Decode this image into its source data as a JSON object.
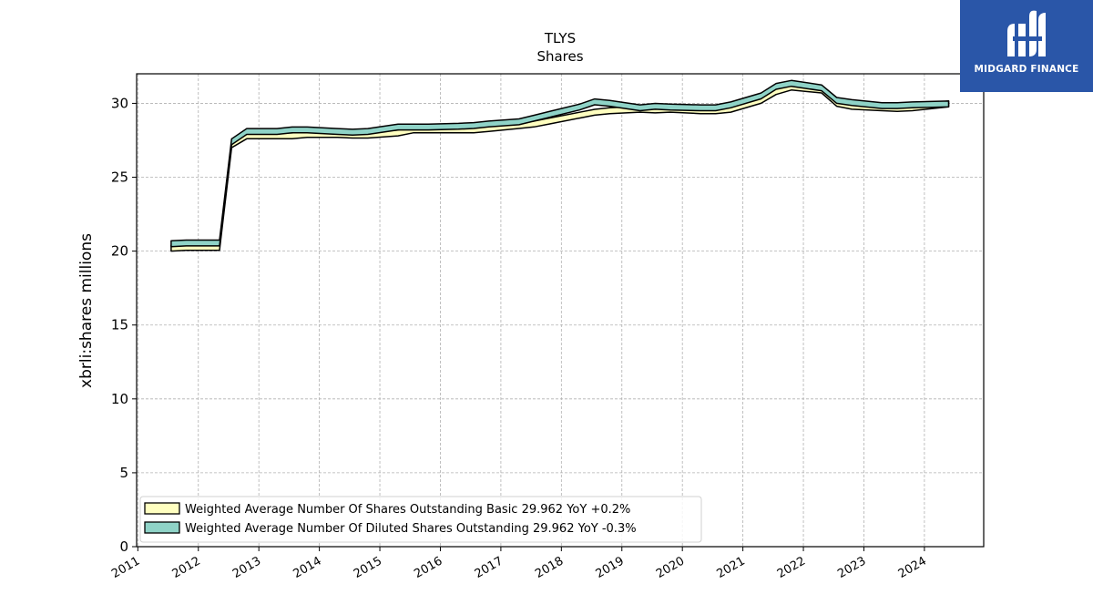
{
  "brand": {
    "name": "MIDGARD FINANCE",
    "bg_color": "#2a56a8"
  },
  "chart_data": {
    "type": "area",
    "title": "TLYS",
    "subtitle": "Shares",
    "xlabel": "",
    "ylabel": "xbrli:shares millions",
    "xlim": [
      2010.98,
      2024.98
    ],
    "ylim": [
      0,
      32
    ],
    "x_ticks": [
      "2011",
      "2012",
      "2013",
      "2014",
      "2015",
      "2016",
      "2017",
      "2018",
      "2019",
      "2020",
      "2021",
      "2022",
      "2023",
      "2024"
    ],
    "y_ticks": [
      "0",
      "5",
      "10",
      "15",
      "20",
      "25",
      "30"
    ],
    "grid": true,
    "legend_position": "lower-left",
    "series": [
      {
        "name": "Weighted Average Number Of Shares Outstanding Basic",
        "legend_label": "Weighted Average Number Of Shares Outstanding Basic  29.962 YoY +0.2%",
        "color": "#ffffc0",
        "x": [
          2011.55,
          2011.8,
          2012.35,
          2012.55,
          2012.8,
          2013.3,
          2013.55,
          2013.8,
          2014.3,
          2014.55,
          2014.8,
          2015.3,
          2015.55,
          2015.8,
          2016.3,
          2016.55,
          2016.8,
          2017.3,
          2017.55,
          2017.8,
          2018.3,
          2018.55,
          2018.8,
          2019.3,
          2019.55,
          2019.8,
          2020.3,
          2020.55,
          2020.8,
          2021.3,
          2021.55,
          2021.8,
          2022.3,
          2022.55,
          2022.8,
          2023.3,
          2023.55,
          2023.8,
          2024.4
        ],
        "values": [
          20.2,
          20.25,
          20.25,
          27.2,
          27.8,
          27.8,
          27.8,
          27.9,
          27.9,
          27.85,
          27.85,
          28.0,
          28.2,
          28.2,
          28.2,
          28.2,
          28.3,
          28.5,
          28.6,
          28.8,
          29.2,
          29.4,
          29.5,
          29.6,
          29.55,
          29.6,
          29.5,
          29.5,
          29.6,
          30.2,
          30.8,
          31.1,
          30.9,
          30.0,
          29.8,
          29.7,
          29.65,
          29.7,
          29.962
        ]
      },
      {
        "name": "Weighted Average Number Of Diluted Shares Outstanding",
        "legend_label": "Weighted Average Number Of Diluted Shares Outstanding  29.962 YoY -0.3%",
        "color": "#8fd3c7",
        "x": [
          2011.55,
          2011.8,
          2012.35,
          2012.55,
          2012.8,
          2013.3,
          2013.55,
          2013.8,
          2014.3,
          2014.55,
          2014.8,
          2015.3,
          2015.55,
          2015.8,
          2016.3,
          2016.55,
          2016.8,
          2017.3,
          2017.55,
          2017.8,
          2018.3,
          2018.55,
          2018.8,
          2019.3,
          2019.55,
          2019.8,
          2020.3,
          2020.55,
          2020.8,
          2021.3,
          2021.55,
          2021.8,
          2022.3,
          2022.55,
          2022.8,
          2023.3,
          2023.55,
          2023.8,
          2024.4
        ],
        "values": [
          20.5,
          20.55,
          20.55,
          27.4,
          28.1,
          28.1,
          28.2,
          28.2,
          28.1,
          28.05,
          28.1,
          28.4,
          28.4,
          28.4,
          28.45,
          28.5,
          28.6,
          28.75,
          29.0,
          29.25,
          29.75,
          30.1,
          30.0,
          29.7,
          29.8,
          29.75,
          29.7,
          29.7,
          29.9,
          30.5,
          31.15,
          31.35,
          31.05,
          30.2,
          30.05,
          29.85,
          29.85,
          29.9,
          29.962
        ]
      }
    ]
  }
}
